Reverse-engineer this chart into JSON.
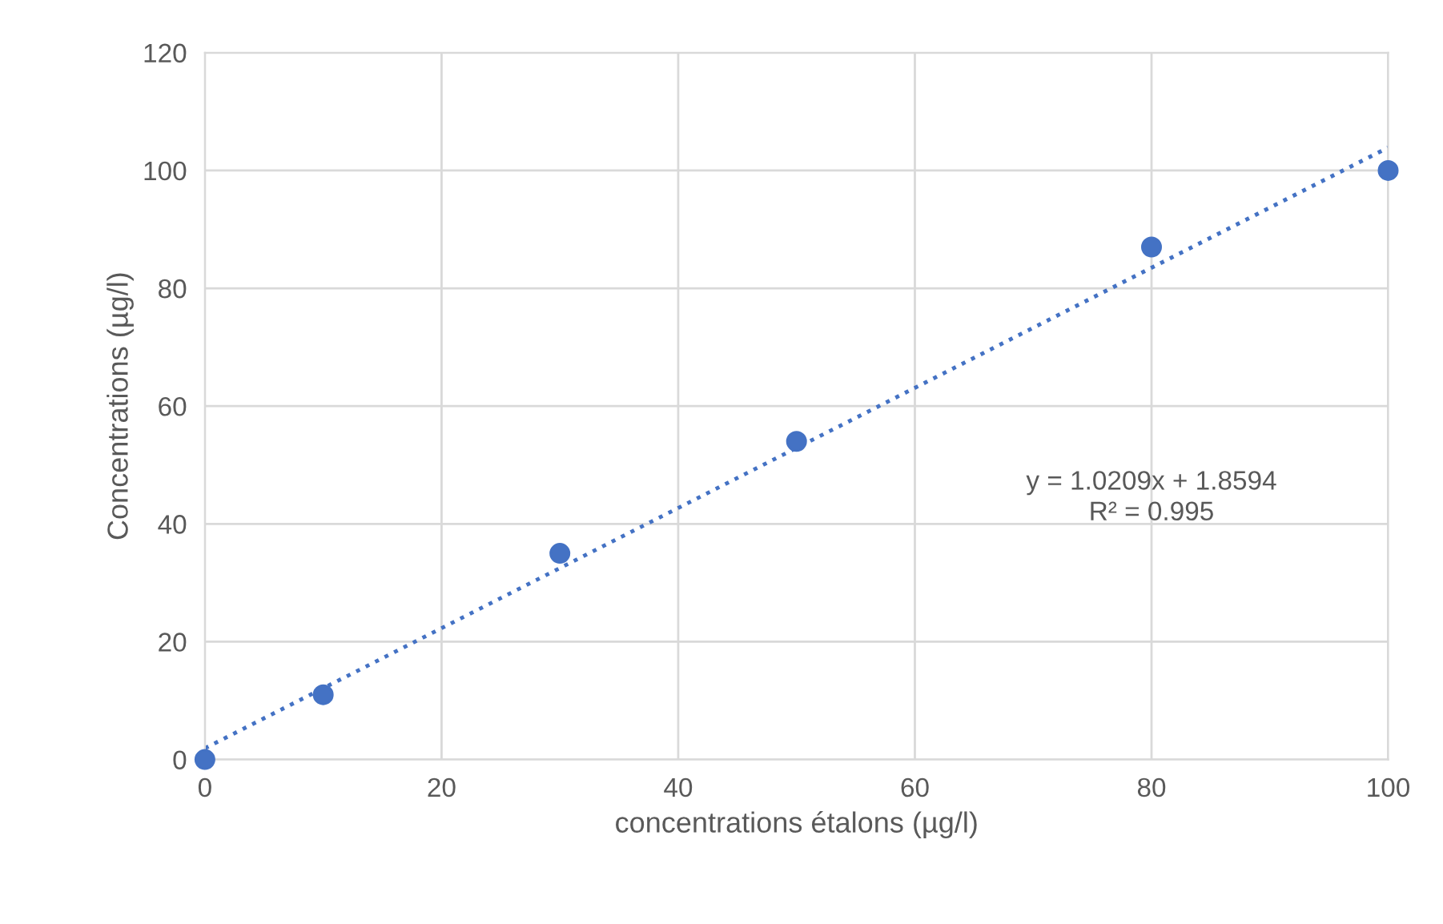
{
  "chart_data": {
    "type": "scatter",
    "xlabel": "concentrations étalons (µg/l)",
    "ylabel": "Concentrations (µg/l)",
    "x": [
      0,
      10,
      30,
      50,
      80,
      100
    ],
    "series": [
      {
        "color": "#4472c4",
        "values": [
          0,
          11,
          35,
          54,
          87,
          100
        ],
        "marker": "circle"
      },
      {
        "type": "line",
        "color": "#4472c4",
        "x": [
          0,
          100
        ],
        "values": [
          1.9,
          103.9
        ],
        "line_style": "dotted",
        "marker": "none"
      }
    ],
    "annotations": [
      "y = 1.0209x + 1.8594",
      "R² = 0.995"
    ],
    "xlim": [
      0,
      100
    ],
    "xticks": [
      0,
      20,
      40,
      60,
      80,
      100
    ],
    "ylim": [
      0,
      120
    ],
    "yticks": [
      0,
      20,
      40,
      60,
      80,
      100,
      120
    ],
    "grid": true,
    "legend": false
  }
}
